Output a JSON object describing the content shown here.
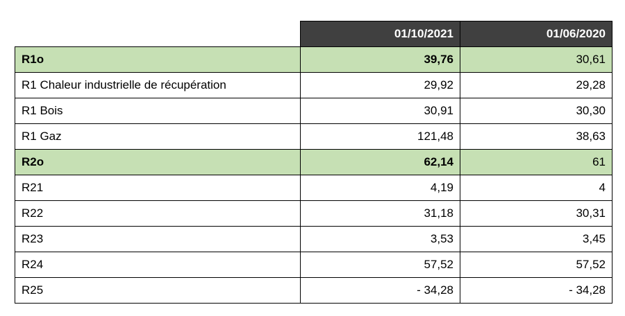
{
  "table": {
    "header": [
      "01/10/2021",
      "01/06/2020"
    ],
    "highlight_color": "#c6e0b4",
    "header_color": "#404040",
    "rows": [
      {
        "label": "R1o",
        "values": [
          "39,76",
          "30,61"
        ],
        "highlight": true
      },
      {
        "label": "R1 Chaleur industrielle de récupération",
        "values": [
          "29,92",
          "29,28"
        ]
      },
      {
        "label": "R1 Bois",
        "values": [
          "30,91",
          "30,30"
        ]
      },
      {
        "label": "R1 Gaz",
        "values": [
          "121,48",
          "38,63"
        ]
      },
      {
        "label": "R2o",
        "values": [
          "62,14",
          "61"
        ],
        "highlight": true
      },
      {
        "label": "R21",
        "values": [
          "4,19",
          "4"
        ]
      },
      {
        "label": "R22",
        "values": [
          "31,18",
          "30,31"
        ]
      },
      {
        "label": "R23",
        "values": [
          "3,53",
          "3,45"
        ]
      },
      {
        "label": "R24",
        "values": [
          "57,52",
          "57,52"
        ]
      },
      {
        "label": "R25",
        "values": [
          "- 34,28",
          "- 34,28"
        ]
      }
    ]
  }
}
